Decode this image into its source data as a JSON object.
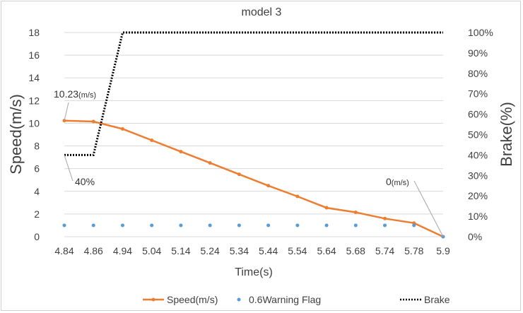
{
  "chart_data": {
    "type": "line",
    "title": "model 3",
    "xlabel": "Time(s)",
    "ylabel": "Speed(m/s)",
    "y2label": "Brake(%)",
    "categories": [
      "4.84",
      "4.86",
      "4.94",
      "5.04",
      "5.14",
      "5.24",
      "5.34",
      "5.44",
      "5.54",
      "5.64",
      "5.68",
      "5.74",
      "5.78",
      "5.9"
    ],
    "ylim": [
      0,
      18
    ],
    "yticks": [
      "0",
      "2",
      "4",
      "6",
      "8",
      "10",
      "12",
      "14",
      "16",
      "18"
    ],
    "y2lim": [
      0,
      100
    ],
    "y2ticks": [
      "0%",
      "10%",
      "20%",
      "30%",
      "40%",
      "50%",
      "60%",
      "70%",
      "80%",
      "90%",
      "100%"
    ],
    "grid": true,
    "legend_position": "bottom",
    "series": [
      {
        "name": "Speed(m/s)",
        "axis": "left",
        "style": "line-with-markers",
        "color": "#ED7D31",
        "values": [
          10.23,
          10.15,
          9.5,
          8.5,
          7.5,
          6.5,
          5.5,
          4.5,
          3.55,
          2.55,
          2.15,
          1.6,
          1.2,
          0
        ]
      },
      {
        "name": "0.6Warning Flag",
        "axis": "left",
        "style": "markers",
        "color": "#5B9BD5",
        "values": [
          1,
          1,
          1,
          1,
          1,
          1,
          1,
          1,
          1,
          1,
          1,
          1,
          1,
          0
        ]
      },
      {
        "name": "Brake",
        "axis": "right",
        "style": "dotted-line",
        "color": "#000000",
        "values": [
          40,
          40,
          100,
          100,
          100,
          100,
          100,
          100,
          100,
          100,
          100,
          100,
          100,
          100
        ]
      }
    ],
    "annotations": [
      {
        "value": "10.23",
        "unit": "(m/s)",
        "series": "Speed(m/s)",
        "index": 0
      },
      {
        "value": "40%",
        "unit": "",
        "series": "Brake",
        "index": 0
      },
      {
        "value": "0",
        "unit": "(m/s)",
        "series": "Speed(m/s)",
        "index": 13
      }
    ]
  }
}
